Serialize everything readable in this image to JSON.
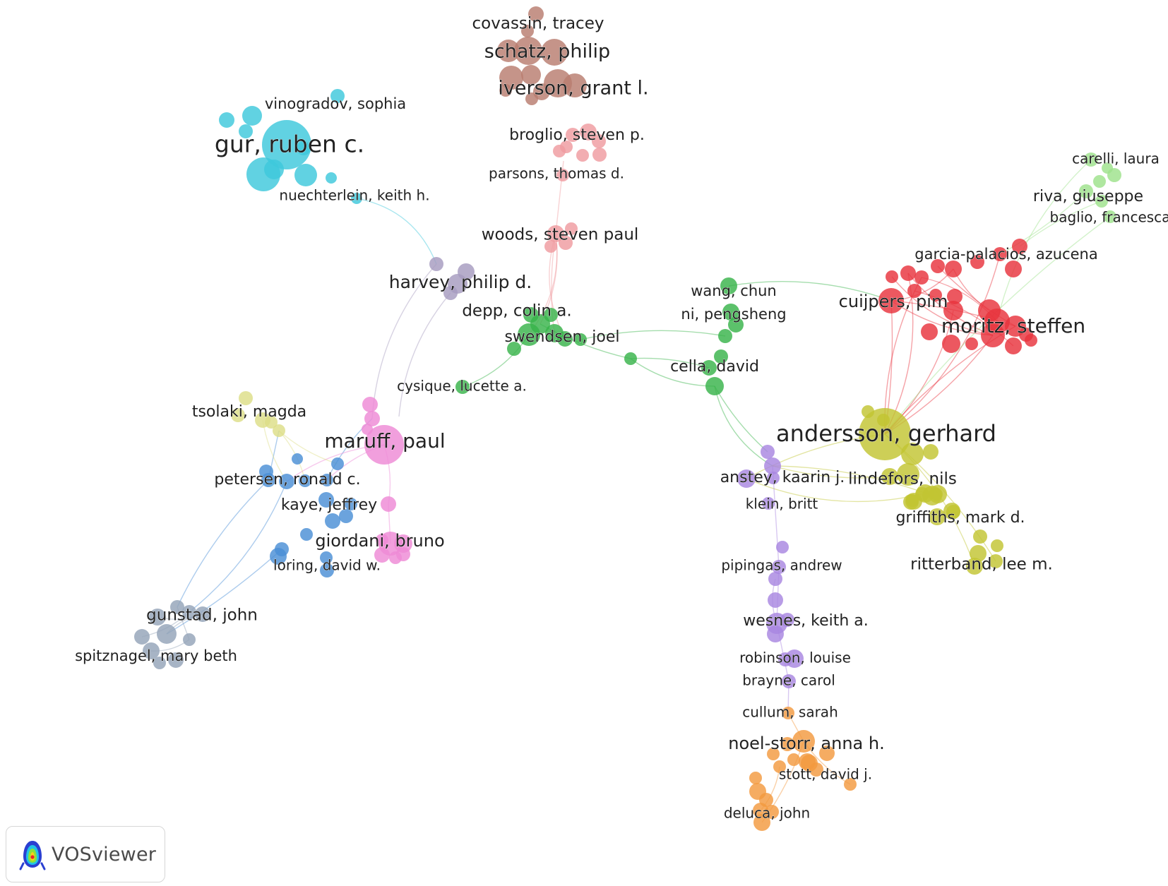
{
  "app": {
    "name": "VOSviewer"
  },
  "colors": {
    "red": "#e8333d",
    "green": "#38b34a",
    "blue": "#4a8fd6",
    "yellow": "#c2c532",
    "purple": "#a886e0",
    "cyan": "#3ec8dc",
    "orange": "#f39a3f",
    "brown": "#b87d6f",
    "pink": "#ee8ad6",
    "salmon": "#ef9ba0",
    "lavender": "#a69bbf",
    "lightgreen": "#9ee28b",
    "paleyellow": "#ddde88",
    "slate": "#94a3b8"
  },
  "clusters": [
    {
      "id": "red",
      "color_key": "red",
      "labels": [
        "garcia-palacios, azucena",
        "cuijpers, pim",
        "moritz, steffen"
      ]
    },
    {
      "id": "green",
      "color_key": "green",
      "labels": [
        "wang, chun",
        "ni, pengsheng",
        "depp, colin a.",
        "swendsen, joel",
        "cella, david",
        "cysique, lucette a."
      ]
    },
    {
      "id": "blue",
      "color_key": "blue",
      "labels": [
        "petersen, ronald c.",
        "kaye, jeffrey",
        "loring, david w."
      ]
    },
    {
      "id": "yellow",
      "color_key": "yellow",
      "labels": [
        "andersson, gerhard",
        "lindefors, nils",
        "griffiths, mark d.",
        "ritterband, lee m."
      ]
    },
    {
      "id": "purple",
      "color_key": "purple",
      "labels": [
        "anstey, kaarin j.",
        "klein, britt",
        "pipingas, andrew",
        "wesnes, keith a.",
        "robinson, louise",
        "brayne, carol"
      ]
    },
    {
      "id": "cyan",
      "color_key": "cyan",
      "labels": [
        "vinogradov, sophia",
        "gur, ruben c.",
        "nuechterlein, keith h."
      ]
    },
    {
      "id": "orange",
      "color_key": "orange",
      "labels": [
        "cullum, sarah",
        "noel-storr, anna h.",
        "stott, david j.",
        "deluca, john"
      ]
    },
    {
      "id": "brown",
      "color_key": "brown",
      "labels": [
        "covassin, tracey",
        "schatz, philip",
        "iverson, grant l."
      ]
    },
    {
      "id": "pink",
      "color_key": "pink",
      "labels": [
        "maruff, paul",
        "giordani, bruno"
      ]
    },
    {
      "id": "salmon",
      "color_key": "salmon",
      "labels": [
        "broglio, steven p.",
        "parsons, thomas d.",
        "woods, steven paul"
      ]
    },
    {
      "id": "lavender",
      "color_key": "lavender",
      "labels": [
        "harvey, philip d."
      ]
    },
    {
      "id": "lightgreen",
      "color_key": "lightgreen",
      "labels": [
        "carelli, laura",
        "riva, giuseppe",
        "baglio, francesca"
      ]
    },
    {
      "id": "paleyellow",
      "color_key": "paleyellow",
      "labels": [
        "tsolaki, magda"
      ]
    },
    {
      "id": "slate",
      "color_key": "slate",
      "labels": [
        "gunstad, john",
        "spitznagel, mary beth"
      ]
    }
  ]
}
